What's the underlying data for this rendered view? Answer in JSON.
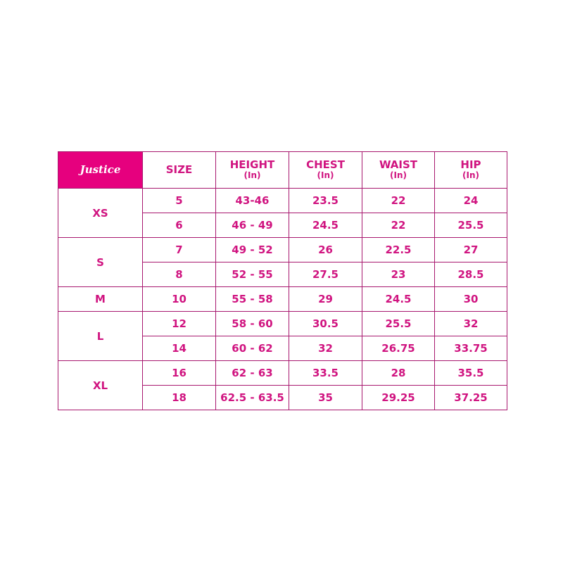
{
  "chart_data": {
    "type": "table",
    "logo_text": "Justice",
    "colors": {
      "logo_bg": "#e6007e",
      "text": "#d01480",
      "border": "#a8186f"
    },
    "headers": [
      {
        "label": "SIZE",
        "unit": ""
      },
      {
        "label": "HEIGHT",
        "unit": "(In)"
      },
      {
        "label": "CHEST",
        "unit": "(In)"
      },
      {
        "label": "WAIST",
        "unit": "(In)"
      },
      {
        "label": "HIP",
        "unit": "(In)"
      }
    ],
    "groups": [
      {
        "name": "XS",
        "rows": [
          [
            "5",
            "43-46",
            "23.5",
            "22",
            "24"
          ],
          [
            "6",
            "46 - 49",
            "24.5",
            "22",
            "25.5"
          ]
        ]
      },
      {
        "name": "S",
        "rows": [
          [
            "7",
            "49 - 52",
            "26",
            "22.5",
            "27"
          ],
          [
            "8",
            "52 - 55",
            "27.5",
            "23",
            "28.5"
          ]
        ]
      },
      {
        "name": "M",
        "rows": [
          [
            "10",
            "55 - 58",
            "29",
            "24.5",
            "30"
          ]
        ]
      },
      {
        "name": "L",
        "rows": [
          [
            "12",
            "58 - 60",
            "30.5",
            "25.5",
            "32"
          ],
          [
            "14",
            "60 - 62",
            "32",
            "26.75",
            "33.75"
          ]
        ]
      },
      {
        "name": "XL",
        "rows": [
          [
            "16",
            "62 - 63",
            "33.5",
            "28",
            "35.5"
          ],
          [
            "18",
            "62.5 - 63.5",
            "35",
            "29.25",
            "37.25"
          ]
        ]
      }
    ]
  }
}
